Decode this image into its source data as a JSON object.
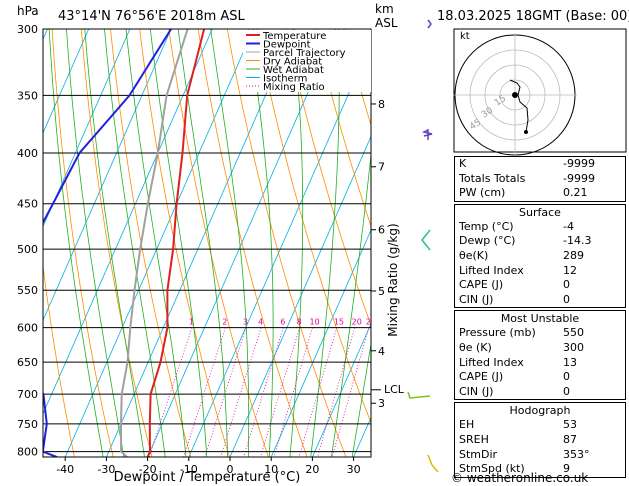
{
  "header": {
    "hpa_label": "hPa",
    "location": "43°14'N  76°56'E  2018m  ASL",
    "km_label": "km",
    "asl_label": "ASL",
    "datetime": "18.03.2025  18GMT  (Base: 00)"
  },
  "legend": [
    {
      "label": "Temperature",
      "color": "#e02020"
    },
    {
      "label": "Dewpoint",
      "color": "#2020e0"
    },
    {
      "label": "Parcel Trajectory",
      "color": "#a0a0a0"
    },
    {
      "label": "Dry Adiabat",
      "color": "#ff8c00"
    },
    {
      "label": "Wet Adiabat",
      "color": "#20b020"
    },
    {
      "label": "Isotherm",
      "color": "#00b0e0"
    },
    {
      "label": "Mixing Ratio",
      "color": "#e000a0"
    }
  ],
  "axes": {
    "xlabel": "Dewpoint / Temperature (°C)",
    "ylabel_right": "Mixing Ratio (g/kg)",
    "pressure_ticks": [
      "300",
      "350",
      "400",
      "450",
      "500",
      "550",
      "600",
      "650",
      "700",
      "750",
      "800"
    ],
    "temp_ticks": [
      "-40",
      "-30",
      "-20",
      "-10",
      "0",
      "10",
      "20",
      "30"
    ],
    "km_ticks": [
      "8",
      "7",
      "6",
      "5",
      "4",
      "3"
    ],
    "lcl_label": "LCL",
    "mixing_ratio_labels": [
      "1",
      "2",
      "3",
      "4",
      "6",
      "8",
      "10",
      "15",
      "20",
      "25"
    ]
  },
  "chart_data": {
    "type": "line",
    "pressure_levels_hpa": [
      300,
      350,
      400,
      450,
      500,
      550,
      600,
      650,
      700,
      750,
      800,
      810
    ],
    "x_range_c": [
      -45,
      33
    ],
    "y_range_hpa": [
      300,
      810
    ],
    "y_scale": "log",
    "grid": true,
    "legend_position": "top-left",
    "series": [
      {
        "name": "Temperature",
        "values": [
          -52,
          -49,
          -44,
          -40,
          -36,
          -33,
          -29,
          -27,
          -26,
          -23,
          -20,
          -20
        ]
      },
      {
        "name": "Dewpoint",
        "values": [
          -60,
          -63,
          -69,
          -70,
          -71,
          -64,
          -67,
          -61,
          -52,
          -48,
          -46,
          -42
        ]
      },
      {
        "name": "Parcel Trajectory",
        "values": [
          -56,
          -54,
          -50,
          -47,
          -44,
          -41,
          -38,
          -35,
          -33,
          -30,
          -27,
          -25
        ]
      }
    ],
    "km_levels": [
      {
        "km": "8",
        "hpa": 357
      },
      {
        "km": "7",
        "hpa": 413
      },
      {
        "km": "6",
        "hpa": 478
      },
      {
        "km": "5",
        "hpa": 551
      },
      {
        "km": "4",
        "hpa": 633
      },
      {
        "km": "3",
        "hpa": 715
      }
    ],
    "lcl_hpa": 693
  },
  "hodograph": {
    "label": "kt",
    "ring_labels": [
      "45",
      "30",
      "15"
    ]
  },
  "indices": {
    "k_label": "K",
    "k_value": "-9999",
    "tt_label": "Totals Totals",
    "tt_value": "-9999",
    "pw_label": "PW (cm)",
    "pw_value": "0.21"
  },
  "surface": {
    "title": "Surface",
    "rows": [
      {
        "label": "Temp (°C)",
        "value": "-4"
      },
      {
        "label": "Dewp (°C)",
        "value": "-14.3"
      },
      {
        "label": "θe(K)",
        "value": "289"
      },
      {
        "label": "Lifted Index",
        "value": "12"
      },
      {
        "label": "CAPE (J)",
        "value": "0"
      },
      {
        "label": "CIN (J)",
        "value": "0"
      }
    ]
  },
  "most_unstable": {
    "title": "Most Unstable",
    "rows": [
      {
        "label": "Pressure (mb)",
        "value": "550"
      },
      {
        "label": "θe (K)",
        "value": "300"
      },
      {
        "label": "Lifted Index",
        "value": "13"
      },
      {
        "label": "CAPE (J)",
        "value": "0"
      },
      {
        "label": "CIN (J)",
        "value": "0"
      }
    ]
  },
  "hodo_table": {
    "title": "Hodograph",
    "rows": [
      {
        "label": "EH",
        "value": "53"
      },
      {
        "label": "SREH",
        "value": "87"
      },
      {
        "label": "StmDir",
        "value": "353°"
      },
      {
        "label": "StmSpd (kt)",
        "value": "9"
      }
    ]
  },
  "footer": "© weatheronline.co.uk"
}
